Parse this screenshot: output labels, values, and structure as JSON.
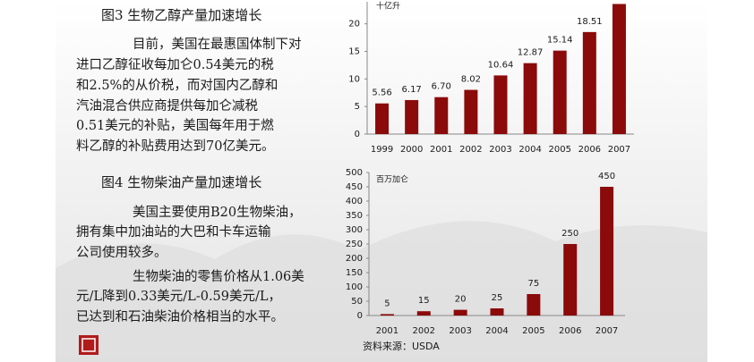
{
  "sections": [
    {
      "title": "图3 生物乙醇产量加速增长",
      "paragraphs": [
        [
          "目前，美国在最惠国体制下对",
          "进口乙醇征收每加仑0.54美元的税",
          "和2.5%的从价税，而对国内乙醇和",
          "汽油混合供应商提供每加仑减税",
          "0.51美元的补贴，美国每年用于燃",
          "料乙醇的补贴费用达到70亿美元。"
        ]
      ]
    },
    {
      "title": "图4 生物柴油产量加速增长",
      "paragraphs": [
        [
          "美国主要使用B20生物柴油，",
          "拥有集中加油站的大巴和卡车运输",
          "公司使用较多。"
        ],
        [
          "生物柴油的零售价格从1.06美",
          "元/L降到0.33美元/L-0.59美元/L，",
          "已达到和石油柴油价格相当的水平。"
        ]
      ]
    }
  ],
  "chart_data": [
    {
      "type": "bar",
      "y_label": "十亿升",
      "color": "#8b0a0a",
      "categories": [
        "1999",
        "2000",
        "2001",
        "2002",
        "2003",
        "2004",
        "2005",
        "2006",
        "2007"
      ],
      "values": [
        5.56,
        6.17,
        6.7,
        8.02,
        10.64,
        12.87,
        15.14,
        18.51,
        23.6
      ],
      "value_labels": [
        "5.56",
        "6.17",
        "6.70",
        "8.02",
        "10.64",
        "12.87",
        "15.14",
        "18.51",
        null
      ],
      "ylim": [
        0,
        24
      ],
      "yticks": [
        0,
        5,
        10,
        15,
        20
      ]
    },
    {
      "type": "bar",
      "y_label": "百万加仑",
      "color": "#8b0a0a",
      "categories": [
        "2001",
        "2002",
        "2003",
        "2004",
        "2005",
        "2006",
        "2007"
      ],
      "values": [
        5,
        15,
        20,
        25,
        75,
        250,
        450
      ],
      "ylim": [
        0,
        500
      ],
      "yticks": [
        0,
        50,
        100,
        150,
        200,
        250,
        300,
        350,
        400,
        450,
        500
      ]
    }
  ],
  "source": "资料来源：USDA"
}
